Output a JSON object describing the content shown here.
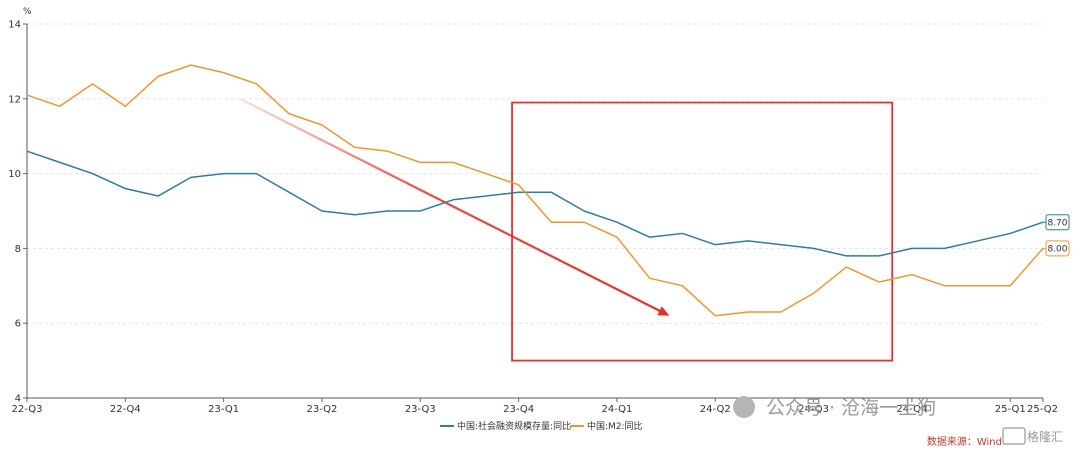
{
  "chart_data": {
    "type": "line",
    "title": "",
    "xlabel": "",
    "ylabel": "%",
    "ylim": [
      4,
      14
    ],
    "yticks": [
      4,
      6,
      8,
      10,
      12,
      14
    ],
    "grid": "horizontal dashed",
    "legend_position": "bottom-center",
    "x_tick_labels": [
      "22-Q3",
      "22-Q4",
      "23-Q1",
      "23-Q2",
      "23-Q3",
      "23-Q4",
      "24-Q1",
      "24-Q2",
      "24-Q3",
      "24-Q4",
      "25-Q1",
      "25-Q2"
    ],
    "x_tick_positions": [
      0,
      3,
      6,
      9,
      12,
      15,
      18,
      21,
      24,
      27,
      30,
      31
    ],
    "x_count": 32,
    "series": [
      {
        "name": "中国:社会融资规模存量:同比",
        "color": "#2e7d9c",
        "values": [
          10.6,
          10.3,
          10.0,
          9.6,
          9.4,
          9.9,
          10.0,
          10.0,
          9.5,
          9.0,
          8.9,
          9.0,
          9.0,
          9.3,
          9.4,
          9.5,
          9.5,
          9.0,
          8.7,
          8.3,
          8.4,
          8.1,
          8.2,
          8.1,
          8.0,
          7.8,
          7.8,
          8.0,
          8.0,
          8.2,
          8.4,
          8.7
        ],
        "end_label": "8.70"
      },
      {
        "name": "中国:M2:同比",
        "color": "#f0962e",
        "values": [
          12.1,
          11.8,
          12.4,
          11.8,
          12.6,
          12.9,
          12.7,
          12.4,
          11.6,
          11.3,
          10.7,
          10.6,
          10.3,
          10.3,
          10.0,
          9.7,
          8.7,
          8.7,
          8.3,
          7.2,
          7.0,
          6.2,
          6.3,
          6.3,
          6.8,
          7.5,
          7.1,
          7.3,
          7.0,
          7.0,
          7.0,
          8.0
        ],
        "end_label": "8.00"
      }
    ],
    "annotations": {
      "arrow": {
        "color": "#e8302a",
        "from": {
          "x": 6.5,
          "y": 12.0
        },
        "to": {
          "x": 19.6,
          "y": 6.2
        }
      },
      "highlight_box": {
        "color": "#e8302a",
        "x_range": [
          14.8,
          26.4
        ],
        "y_range": [
          5.0,
          11.9
        ]
      }
    },
    "source_text": "数据来源：Wind"
  },
  "watermark": {
    "text": "公众号 · 沧海一土狗",
    "logo_text": "格隆汇"
  }
}
